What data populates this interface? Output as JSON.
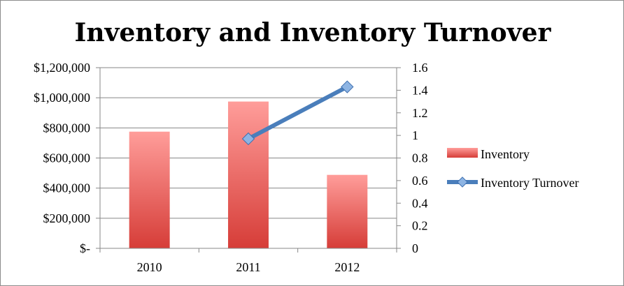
{
  "chart_data": {
    "type": "bar",
    "title": "Inventory and Inventory Turnover",
    "categories": [
      "2010",
      "2011",
      "2012"
    ],
    "series": [
      {
        "name": "Inventory",
        "type": "bar",
        "axis": "left",
        "values": [
          775000,
          975000,
          488000
        ],
        "color": "#d9403a"
      },
      {
        "name": "Inventory Turnover",
        "type": "line",
        "axis": "right",
        "values": [
          null,
          0.97,
          1.43
        ],
        "color": "#4a7ebb"
      }
    ],
    "y_left": {
      "ylim": [
        0,
        1200000
      ],
      "tick_labels": [
        "$-",
        "$200,000",
        "$400,000",
        "$600,000",
        "$800,000",
        "$1,000,000",
        "$1,200,000"
      ]
    },
    "y_right": {
      "ylim": [
        0,
        1.6
      ],
      "tick_labels": [
        "0",
        "0.2",
        "0.4",
        "0.6",
        "0.8",
        "1",
        "1.2",
        "1.4",
        "1.6"
      ]
    },
    "grid": true,
    "legend": "right"
  }
}
